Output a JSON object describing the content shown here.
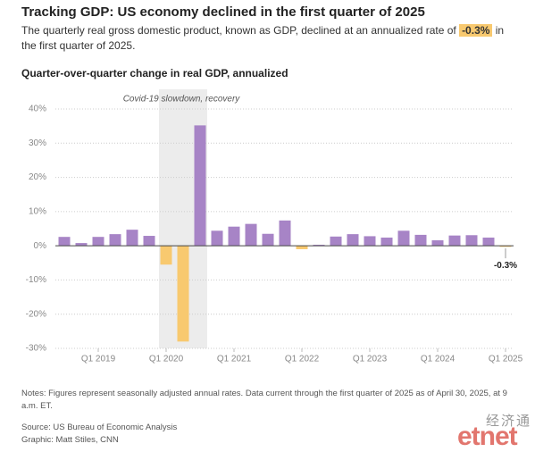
{
  "header": {
    "title": "Tracking GDP: US economy declined in the first quarter of 2025",
    "subtitle_before": "The quarterly real gross domestic product, known as GDP, declined at an annualized rate of",
    "subtitle_highlight": "-0.3%",
    "subtitle_after": "in the first quarter of 2025."
  },
  "chart_data": {
    "type": "bar",
    "title": "Quarter-over-quarter change in real GDP, annualized",
    "annotation": "Covid-19 slowdown, recovery",
    "categories": [
      null,
      null,
      "Q1 2019",
      null,
      null,
      null,
      "Q1 2020",
      null,
      null,
      null,
      "Q1 2021",
      null,
      null,
      null,
      "Q1 2022",
      null,
      null,
      null,
      "Q1 2023",
      null,
      null,
      null,
      "Q1 2024",
      null,
      null,
      null,
      "Q1 2025"
    ],
    "values": [
      2.6,
      0.8,
      2.6,
      3.4,
      4.7,
      2.9,
      -5.5,
      -28.0,
      35.2,
      4.4,
      5.6,
      6.4,
      3.5,
      7.4,
      -1.0,
      0.3,
      2.7,
      3.4,
      2.8,
      2.4,
      4.4,
      3.2,
      1.6,
      3.0,
      3.1,
      2.4,
      -0.3
    ],
    "value_labels": [
      null,
      null,
      null,
      null,
      null,
      null,
      null,
      null,
      null,
      null,
      null,
      null,
      null,
      null,
      null,
      null,
      null,
      null,
      null,
      null,
      null,
      null,
      null,
      null,
      null,
      null,
      "-0.3%"
    ],
    "color": "#a784c6",
    "negative_color": "#f8c96f",
    "ylim": [
      -30,
      40
    ],
    "yticks": [
      {
        "value": -30,
        "label": "-30%"
      },
      {
        "value": -20,
        "label": "-20%"
      },
      {
        "value": -10,
        "label": "-10%"
      },
      {
        "value": 0,
        "label": "0%"
      },
      {
        "value": 10,
        "label": "10%"
      },
      {
        "value": 20,
        "label": "20%"
      },
      {
        "value": 30,
        "label": "30%"
      },
      {
        "value": 40,
        "label": "40%"
      }
    ],
    "grid": true
  },
  "notes": "Notes: Figures represent seasonally adjusted annual rates. Data current through the first quarter of 2025 as of April 30, 2025, at 9 a.m. ET.",
  "source": "Source: US Bureau of Economic Analysis",
  "credit": "Graphic: Matt Stiles, CNN",
  "watermark": {
    "chinese": "经济通",
    "brand": "etnet"
  }
}
